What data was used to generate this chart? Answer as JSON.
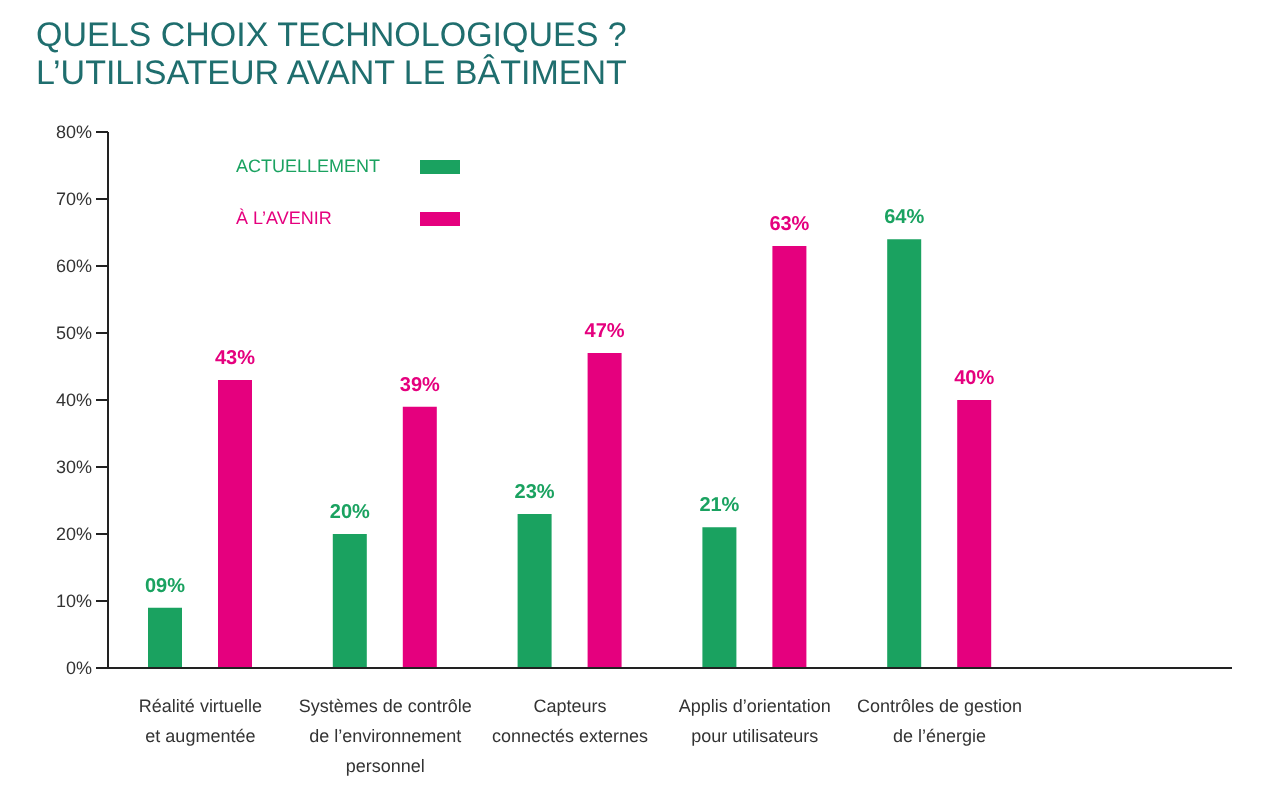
{
  "chart_data": {
    "type": "bar",
    "title": "QUELS CHOIX TECHNOLOGIQUES ?\nL’UTILISATEUR AVANT LE BÂTIMENT",
    "categories": [
      "Réalité virtuelle\net augmentée",
      "Systèmes de contrôle\nde l’environnement\npersonnel",
      "Capteurs\nconnectés externes",
      "Applis d’orientation\npour utilisateurs",
      "Contrôles de gestion\nde l’énergie"
    ],
    "series": [
      {
        "name": "ACTUELLEMENT",
        "color": "#1aa260",
        "values": [
          9,
          20,
          23,
          21,
          64
        ],
        "value_labels": [
          "09%",
          "20%",
          "23%",
          "21%",
          "64%"
        ]
      },
      {
        "name": "À L’AVENIR",
        "color": "#e5007e",
        "values": [
          43,
          39,
          47,
          63,
          40
        ],
        "value_labels": [
          "43%",
          "39%",
          "47%",
          "63%",
          "40%"
        ]
      }
    ],
    "ylim": [
      0,
      80
    ],
    "yticks": [
      {
        "value": 0,
        "label": "0%"
      },
      {
        "value": 10,
        "label": "10%"
      },
      {
        "value": 20,
        "label": "20%"
      },
      {
        "value": 30,
        "label": "30%"
      },
      {
        "value": 40,
        "label": "40%"
      },
      {
        "value": 50,
        "label": "50%"
      },
      {
        "value": 60,
        "label": "60%"
      },
      {
        "value": 70,
        "label": "70%"
      },
      {
        "value": 80,
        "label": "80%"
      }
    ],
    "grid": false,
    "legend": "top left"
  }
}
